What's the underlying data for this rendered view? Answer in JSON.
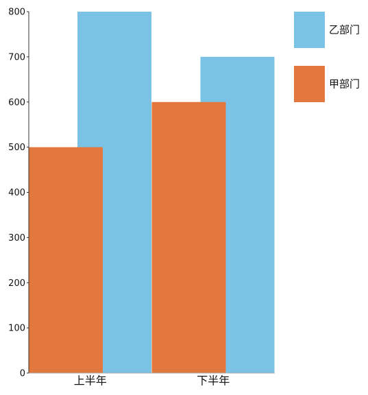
{
  "chart_data": {
    "type": "bar",
    "categories": [
      "上半年",
      "下半年"
    ],
    "series": [
      {
        "name": "乙部门",
        "color": "#7ac3e6",
        "values": [
          800,
          700
        ]
      },
      {
        "name": "甲部门",
        "color": "#e2783e",
        "values": [
          500,
          600
        ]
      }
    ],
    "ylim": [
      0,
      800
    ],
    "yticks": [
      0,
      100,
      200,
      300,
      400,
      500,
      600,
      700,
      800
    ]
  }
}
